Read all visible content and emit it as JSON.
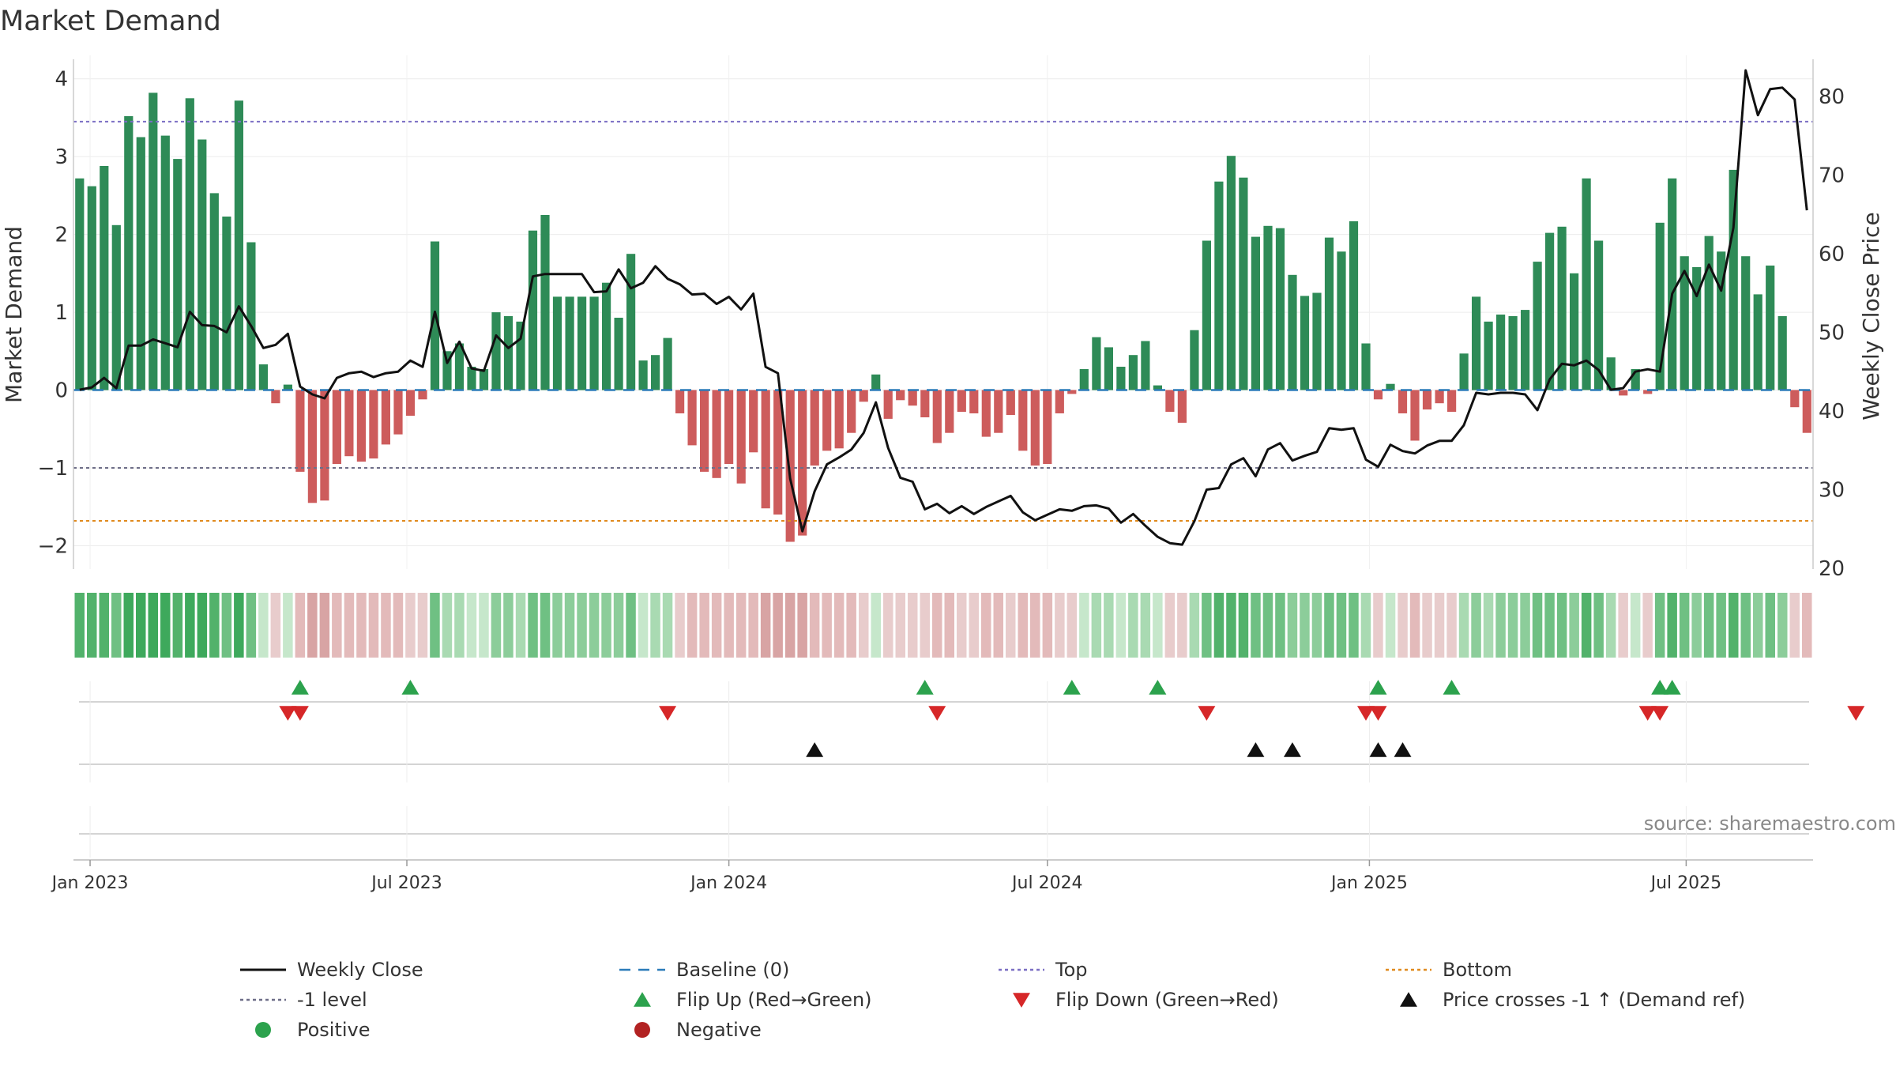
{
  "chart_data": {
    "type": "bar",
    "title": "Market Demand",
    "ylabel": "Market Demand",
    "y2label": "Weekly Close Price",
    "ylim": [
      -2.3,
      4.2
    ],
    "y2lim": [
      19.9,
      84.2
    ],
    "yticks": [
      -2,
      -1,
      0,
      1,
      2,
      3,
      4
    ],
    "y2ticks": [
      20,
      30,
      40,
      50,
      60,
      70,
      80
    ],
    "x_start": "2022-12-26",
    "xticks": [
      {
        "date": "2023-01-01",
        "label": "Jan 2023"
      },
      {
        "date": "2023-07-01",
        "label": "Jul 2023"
      },
      {
        "date": "2024-01-01",
        "label": "Jan 2024"
      },
      {
        "date": "2024-07-01",
        "label": "Jul 2024"
      },
      {
        "date": "2025-01-01",
        "label": "Jan 2025"
      },
      {
        "date": "2025-07-01",
        "label": "Jul 2025"
      }
    ],
    "reference_lines": [
      {
        "name": "Top",
        "value": 3.45,
        "color": "#7b6fc4",
        "style": "dotted"
      },
      {
        "name": "-1 level",
        "value": -1.0,
        "color": "#6e6e88",
        "style": "dotted"
      },
      {
        "name": "Bottom",
        "value": -1.68,
        "color": "#e08a1e",
        "style": "dotted"
      },
      {
        "name": "Baseline (0)",
        "value": 0,
        "color": "#2b7bb9",
        "style": "dashed"
      }
    ],
    "series": [
      {
        "name": "Market Demand",
        "kind": "bar",
        "values": [
          2.72,
          2.62,
          2.88,
          2.12,
          3.52,
          3.25,
          3.82,
          3.27,
          2.97,
          3.75,
          3.22,
          2.53,
          2.23,
          3.72,
          1.9,
          0.33,
          -0.17,
          0.07,
          -1.05,
          -1.45,
          -1.42,
          -0.95,
          -0.85,
          -0.92,
          -0.88,
          -0.7,
          -0.57,
          -0.33,
          -0.12,
          1.91,
          0.5,
          0.6,
          0.3,
          0.27,
          1.0,
          0.95,
          0.88,
          2.05,
          2.25,
          1.2,
          1.2,
          1.2,
          1.2,
          1.38,
          0.93,
          1.75,
          0.38,
          0.45,
          0.67,
          -0.3,
          -0.71,
          -1.05,
          -1.13,
          -0.95,
          -1.2,
          -0.8,
          -1.52,
          -1.6,
          -1.95,
          -1.87,
          -0.97,
          -0.78,
          -0.75,
          -0.55,
          -0.15,
          0.2,
          -0.37,
          -0.13,
          -0.2,
          -0.35,
          -0.68,
          -0.55,
          -0.28,
          -0.3,
          -0.6,
          -0.55,
          -0.32,
          -0.78,
          -0.97,
          -0.95,
          -0.3,
          -0.05,
          0.27,
          0.68,
          0.55,
          0.3,
          0.45,
          0.63,
          0.06,
          -0.28,
          -0.42,
          0.77,
          1.92,
          2.68,
          3.01,
          2.73,
          1.97,
          2.11,
          2.08,
          1.48,
          1.21,
          1.25,
          1.96,
          1.78,
          2.17,
          0.6,
          -0.12,
          0.08,
          -0.3,
          -0.65,
          -0.25,
          -0.17,
          -0.28,
          0.47,
          1.2,
          0.88,
          0.97,
          0.95,
          1.03,
          1.65,
          2.02,
          2.1,
          1.5,
          2.72,
          1.92,
          0.42,
          -0.07,
          0.27,
          -0.05,
          2.15,
          2.72,
          1.72,
          1.58,
          1.98,
          1.78,
          2.83,
          1.72,
          1.23,
          1.6,
          0.95,
          -0.22,
          -0.55
        ]
      },
      {
        "name": "Weekly Close",
        "kind": "line",
        "axis": "right",
        "values": [
          42.7,
          43.0,
          44.2,
          42.9,
          48.3,
          48.3,
          49.1,
          48.6,
          48.1,
          52.6,
          50.9,
          50.8,
          50.0,
          53.3,
          50.8,
          48.0,
          48.4,
          49.8,
          43.1,
          42.1,
          41.6,
          44.2,
          44.8,
          45.0,
          44.3,
          44.8,
          45.0,
          46.4,
          45.6,
          52.6,
          46.1,
          48.8,
          45.4,
          45.1,
          49.6,
          48.0,
          49.2,
          57.1,
          57.4,
          57.4,
          57.4,
          57.4,
          55.1,
          55.2,
          58.0,
          55.6,
          56.3,
          58.4,
          56.8,
          56.1,
          54.8,
          54.9,
          53.6,
          54.5,
          52.9,
          54.9,
          45.6,
          44.8,
          31.4,
          24.7,
          29.8,
          33.2,
          34.1,
          35.1,
          37.2,
          41.1,
          35.3,
          31.5,
          31.0,
          27.5,
          28.2,
          27.0,
          27.9,
          26.9,
          27.8,
          28.5,
          29.2,
          27.1,
          26.1,
          26.8,
          27.5,
          27.3,
          27.9,
          28.0,
          27.6,
          25.8,
          26.9,
          25.4,
          24.0,
          23.2,
          23.0,
          26.0,
          30.0,
          30.2,
          33.2,
          34.0,
          31.7,
          35.1,
          35.9,
          33.7,
          34.3,
          34.8,
          37.8,
          37.6,
          37.8,
          33.8,
          32.9,
          35.7,
          34.9,
          34.6,
          35.6,
          36.2,
          36.2,
          38.2,
          42.3,
          42.1,
          42.3,
          42.3,
          42.1,
          40.1,
          44.0,
          46.0,
          45.8,
          46.4,
          45.2,
          42.7,
          42.9,
          45.0,
          45.3,
          45.0,
          54.9,
          57.8,
          54.6,
          58.6,
          55.3,
          63.3,
          83.3,
          77.6,
          80.9,
          81.1,
          79.6,
          65.5,
          63.3
        ]
      }
    ],
    "bar_colors": {
      "positive": "#2e8b57",
      "negative": "#cd5c5c"
    },
    "strip_colors": [
      "#3ea95c",
      "#52b26b",
      "#6fc083",
      "#8ccd9a",
      "#a9dab2",
      "#c6e7cb",
      "#e8cccc",
      "#e3baba",
      "#d8a4a4"
    ],
    "flip_up_events": [
      "2023-05-01",
      "2023-07-03",
      "2024-04-22",
      "2024-07-15",
      "2024-09-02",
      "2025-01-06",
      "2025-02-17",
      "2025-06-16",
      "2025-06-23"
    ],
    "flip_down_events": [
      "2023-04-24",
      "2023-05-01",
      "2023-11-27",
      "2024-04-29",
      "2024-09-30",
      "2024-12-30",
      "2025-01-06",
      "2025-06-09",
      "2025-06-16",
      "2025-10-06"
    ],
    "cross_events": [
      "2024-02-19",
      "2024-10-28",
      "2024-11-18",
      "2025-01-06",
      "2025-01-20"
    ],
    "annotation": "source: sharemaestro.com"
  },
  "legend": {
    "items": [
      {
        "label": "Weekly Close",
        "symbol": "line",
        "color": "#111111"
      },
      {
        "label": "Baseline (0)",
        "symbol": "dash",
        "color": "#2b7bb9"
      },
      {
        "label": "Top",
        "symbol": "dot",
        "color": "#7b6fc4"
      },
      {
        "label": "Bottom",
        "symbol": "dot",
        "color": "#e08a1e"
      },
      {
        "label": "-1 level",
        "symbol": "dot",
        "color": "#6e6e88"
      },
      {
        "label": "Flip Up (Red→Green)",
        "symbol": "tri-up",
        "color": "#2ca24d"
      },
      {
        "label": "Flip Down (Green→Red)",
        "symbol": "tri-down",
        "color": "#d62728"
      },
      {
        "label": "Price crosses -1 ↑ (Demand ref)",
        "symbol": "tri-up",
        "color": "#111111"
      },
      {
        "label": "Positive",
        "symbol": "circle",
        "color": "#2ca24d"
      },
      {
        "label": "Negative",
        "symbol": "circle",
        "color": "#b22222"
      }
    ]
  }
}
